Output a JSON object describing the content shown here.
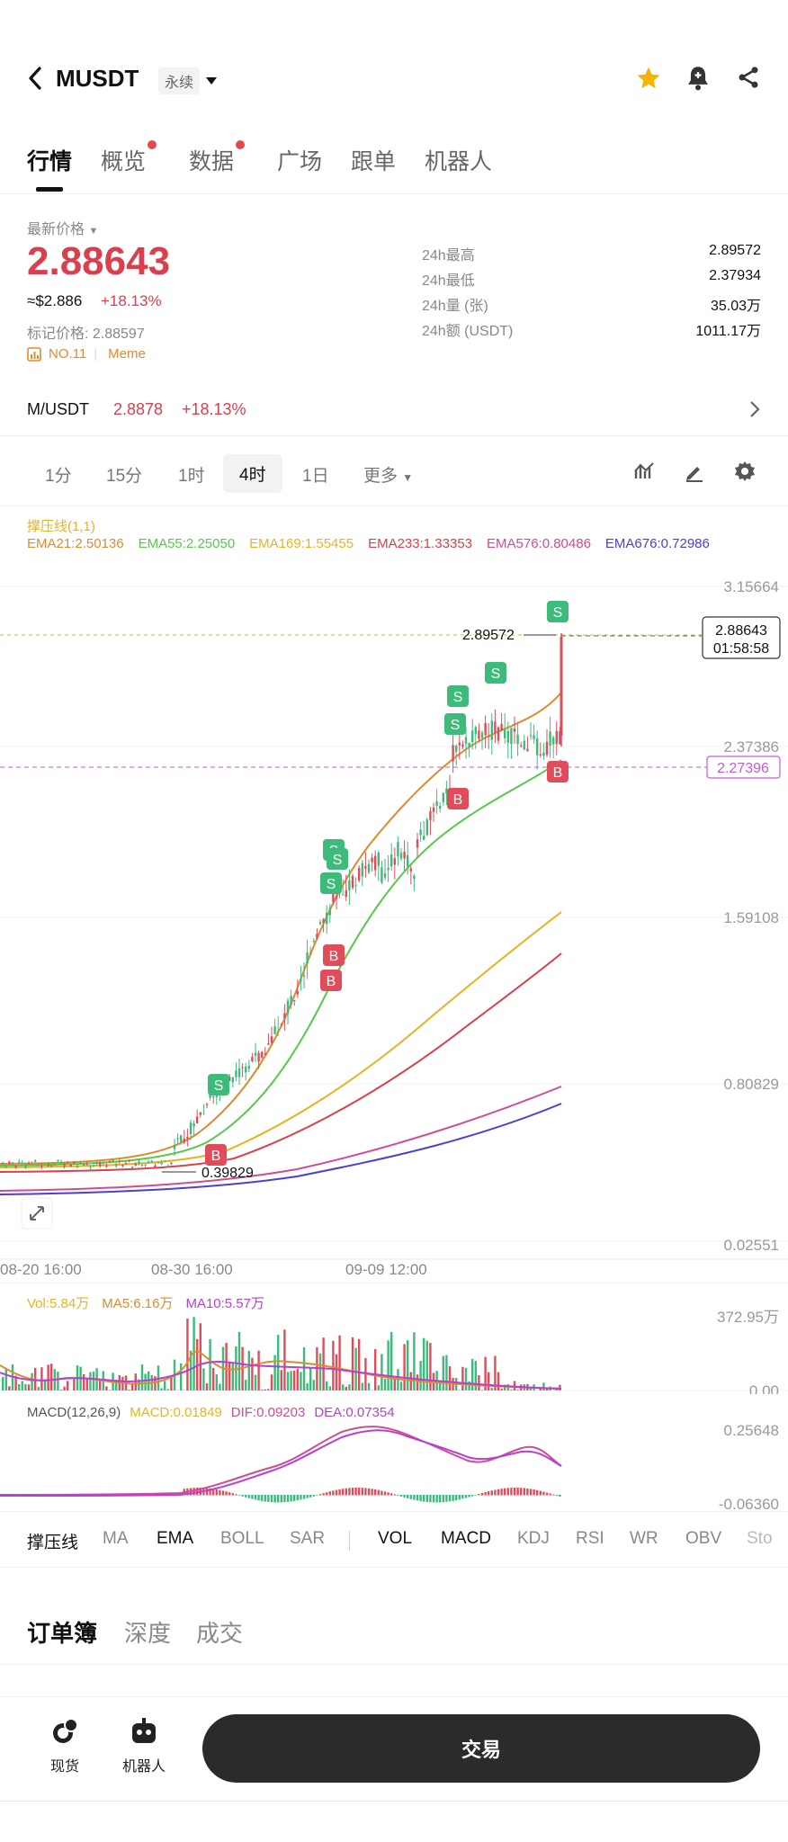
{
  "header": {
    "title": "MUSDT",
    "perp_tag": "永续"
  },
  "tabs": [
    {
      "label": "行情",
      "active": true,
      "dot": false
    },
    {
      "label": "概览",
      "active": false,
      "dot": true
    },
    {
      "label": "数据",
      "active": false,
      "dot": true
    },
    {
      "label": "广场",
      "active": false,
      "dot": false
    },
    {
      "label": "跟单",
      "active": false,
      "dot": false
    },
    {
      "label": "机器人",
      "active": false,
      "dot": false
    }
  ],
  "price": {
    "latest_label": "最新价格",
    "last": "2.88643",
    "usd": "≈$2.886",
    "change": "+18.13%",
    "mark_label": "标记价格: 2.88597",
    "rank": "NO.11",
    "category": "Meme"
  },
  "stats": [
    {
      "label": "24h最高",
      "value": "2.89572"
    },
    {
      "label": "24h最低",
      "value": "2.37934"
    },
    {
      "label": "24h量 (张)",
      "value": "35.03万"
    },
    {
      "label": "24h额 (USDT)",
      "value": "1011.17万"
    }
  ],
  "spot": {
    "pair": "M/USDT",
    "price": "2.8878",
    "change": "+18.13%"
  },
  "timeframes": {
    "items": [
      "1分",
      "15分",
      "1时",
      "4时",
      "1日"
    ],
    "active": "4时",
    "more": "更多"
  },
  "indicator_header": {
    "sr": "撑压线(1,1)",
    "emas": [
      {
        "label": "EMA21:2.50136",
        "color": "#e08a2e"
      },
      {
        "label": "EMA55:2.25050",
        "color": "#56c94a"
      },
      {
        "label": "EMA169:1.55455",
        "color": "#e6b422"
      },
      {
        "label": "EMA233:1.33353",
        "color": "#d93f4c"
      },
      {
        "label": "EMA576:0.80486",
        "color": "#d14b8f"
      },
      {
        "label": "EMA676:0.72986",
        "color": "#4b3fd6"
      }
    ]
  },
  "chart": {
    "y_ticks": [
      "3.15664",
      "2.37386",
      "1.59108",
      "0.80829",
      "0.02551"
    ],
    "x_ticks": [
      "08-20 16:00",
      "08-30 16:00",
      "09-09 12:00"
    ],
    "high_label": "2.89572",
    "low_label": "0.39829",
    "last_price": "2.88643",
    "countdown": "01:58:58",
    "support": "2.27396",
    "signal_buy": "B",
    "signal_sell": "S"
  },
  "volume": {
    "vol": "Vol:5.84万",
    "ma5": "MA5:6.16万",
    "ma10": "MA10:5.57万",
    "max": "372.95万",
    "min": "0.00"
  },
  "macd": {
    "title": "MACD(12,26,9)",
    "macd": "MACD:0.01849",
    "dif": "DIF:0.09203",
    "dea": "DEA:0.07354",
    "max": "0.25648",
    "min": "-0.06360"
  },
  "indicators": {
    "main": [
      "撑压线",
      "MA",
      "EMA",
      "BOLL",
      "SAR"
    ],
    "sub": [
      "VOL",
      "MACD",
      "KDJ",
      "RSI",
      "WR",
      "OBV",
      "Sto"
    ],
    "on": [
      "撑压线",
      "EMA",
      "VOL",
      "MACD"
    ]
  },
  "book_tabs": [
    "订单簿",
    "深度",
    "成交"
  ],
  "bottom": {
    "spot": "现货",
    "bot": "机器人",
    "trade": "交易"
  },
  "colors": {
    "up": "#3dbb7a",
    "down": "#e04c5a",
    "accent_red": "#d93f4c",
    "star": "#f5b400"
  }
}
